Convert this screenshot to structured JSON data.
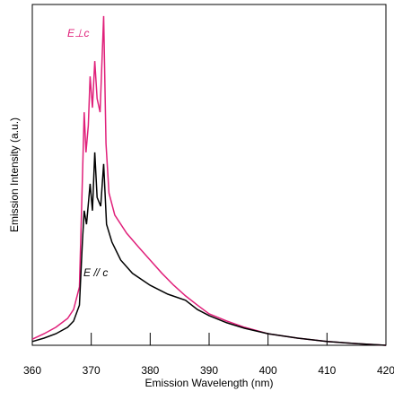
{
  "chart_data": {
    "type": "line",
    "xlabel": "Emission Wavelength (nm)",
    "ylabel": "Emission Intensity (a.u.)",
    "xlim": [
      360,
      420
    ],
    "xticks": [
      360,
      370,
      380,
      390,
      400,
      410,
      420
    ],
    "ylim": [
      0,
      1
    ],
    "series": [
      {
        "name": "E⊥c",
        "color": "#e0207a",
        "x": [
          360,
          362,
          364,
          366,
          367,
          368,
          368.5,
          368.8,
          369.1,
          369.5,
          369.8,
          370.2,
          370.6,
          371,
          371.5,
          372.1,
          372.5,
          373,
          374,
          376,
          378,
          380,
          382,
          384,
          386,
          388,
          390,
          393,
          396,
          400,
          405,
          410,
          415,
          420
        ],
        "values": [
          0.018,
          0.034,
          0.053,
          0.079,
          0.105,
          0.171,
          0.487,
          0.684,
          0.566,
          0.645,
          0.789,
          0.697,
          0.834,
          0.724,
          0.684,
          0.966,
          0.592,
          0.447,
          0.382,
          0.329,
          0.289,
          0.25,
          0.211,
          0.176,
          0.145,
          0.118,
          0.092,
          0.071,
          0.053,
          0.034,
          0.021,
          0.011,
          0.005,
          0
        ]
      },
      {
        "name": "E // c",
        "color": "#000000",
        "x": [
          360,
          362,
          364,
          366,
          367,
          368,
          368.5,
          368.8,
          369.2,
          369.8,
          370.2,
          370.6,
          371,
          371.6,
          372.1,
          372.6,
          373.5,
          375,
          377,
          380,
          383,
          386,
          388,
          390,
          393,
          396,
          400,
          405,
          410,
          415,
          420
        ],
        "values": [
          0.011,
          0.021,
          0.034,
          0.053,
          0.071,
          0.118,
          0.303,
          0.395,
          0.355,
          0.474,
          0.395,
          0.566,
          0.434,
          0.408,
          0.532,
          0.355,
          0.303,
          0.25,
          0.211,
          0.176,
          0.15,
          0.132,
          0.105,
          0.087,
          0.066,
          0.05,
          0.034,
          0.021,
          0.011,
          0.005,
          0
        ]
      }
    ]
  }
}
